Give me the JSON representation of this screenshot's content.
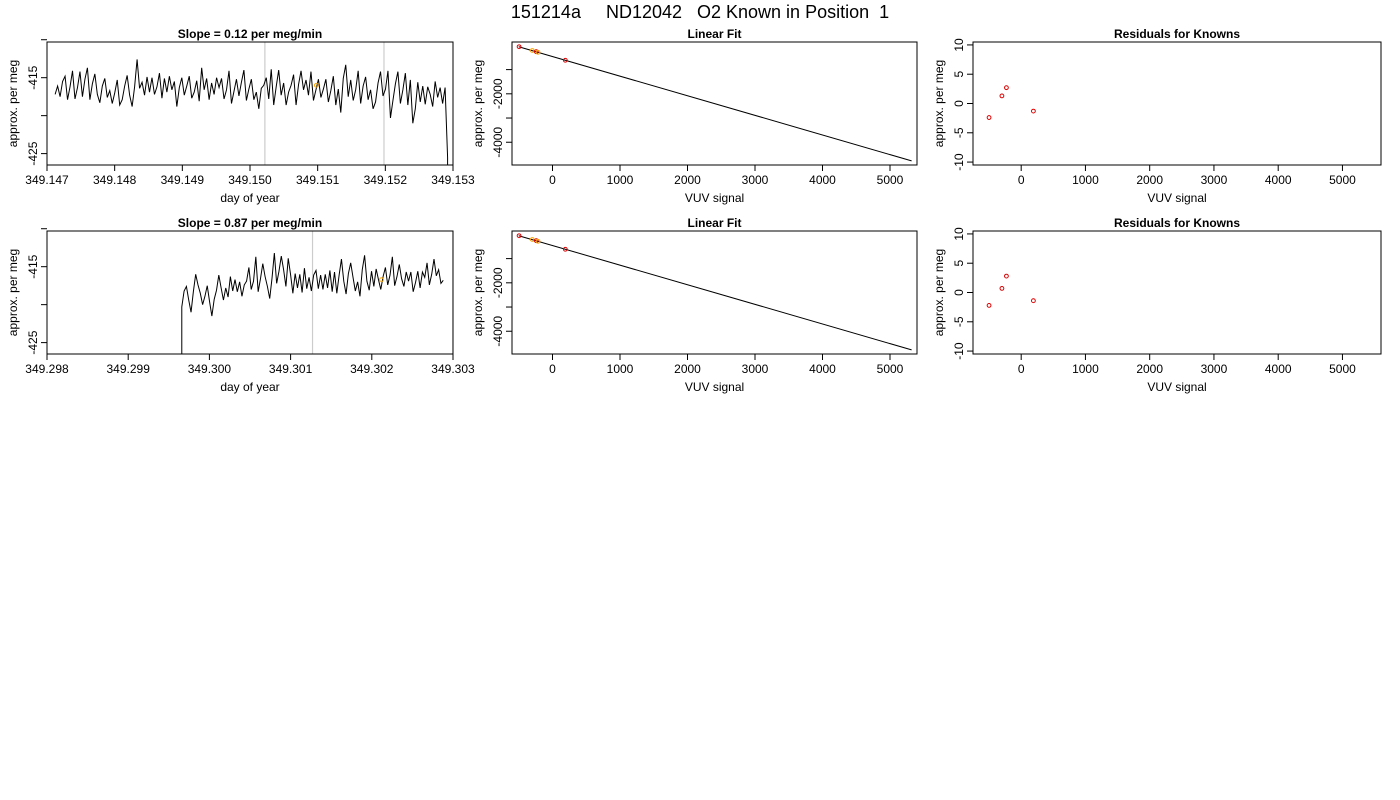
{
  "page": {
    "title": "151214a     ND12042   O2 Known in Position  1"
  },
  "colors": {
    "line": "#000000",
    "grid": "#cccccc",
    "point_red": "#dd0000",
    "point_orange": "#ffa500"
  },
  "chart_data": [
    {
      "type": "line",
      "row": 0,
      "col": 0,
      "title": "Slope =  0.12  per meg/min",
      "xlabel": "day of year",
      "ylabel": "approx. per meg",
      "xlim": [
        349.147,
        349.153
      ],
      "ylim": [
        -426.5,
        -410.3
      ],
      "xticks": [
        349.147,
        349.148,
        349.149,
        349.15,
        349.151,
        349.152,
        349.153
      ],
      "xtick_labels": [
        "349.147",
        "349.148",
        "349.149",
        "349.150",
        "349.151",
        "349.152",
        "349.153"
      ],
      "yticks": [
        -425,
        -420,
        -415,
        -410
      ],
      "ytick_labels": [
        "-425",
        "",
        "-415",
        ""
      ],
      "vlines": [
        349.15022,
        349.15198
      ],
      "series": [
        {
          "start": 349.14712,
          "end": 349.15292,
          "y_out": -430,
          "values": [
            -417.2,
            -416.1,
            -417.5,
            -415.5,
            -414.8,
            -417.9,
            -416.2,
            -414.1,
            -417.8,
            -416.3,
            -414.2,
            -417.5,
            -415.2,
            -413.7,
            -417.9,
            -415.8,
            -414.5,
            -417.2,
            -418.3,
            -416.1,
            -415.1,
            -417.6,
            -416.7,
            -418.4,
            -417.0,
            -415.3,
            -418.6,
            -417.9,
            -416.1,
            -414.7,
            -417.3,
            -418.8,
            -416.2,
            -412.6,
            -416.4,
            -415.6,
            -417.3,
            -414.9,
            -416.9,
            -415.0,
            -417.2,
            -416.2,
            -414.4,
            -417.7,
            -415.1,
            -416.9,
            -414.8,
            -416.6,
            -415.5,
            -418.8,
            -416.3,
            -415.0,
            -417.3,
            -416.1,
            -414.8,
            -417.7,
            -416.9,
            -415.4,
            -418.1,
            -413.7,
            -416.6,
            -415.1,
            -417.9,
            -415.7,
            -417.2,
            -415.0,
            -416.3,
            -415.1,
            -417.8,
            -416.6,
            -414.1,
            -418.4,
            -416.8,
            -415.2,
            -417.4,
            -415.6,
            -414.0,
            -418.0,
            -416.5,
            -415.2,
            -417.9,
            -416.9,
            -419.1,
            -416.4,
            -416.0,
            -415.0,
            -417.8,
            -413.9,
            -418.6,
            -416.2,
            -414.0,
            -417.3,
            -415.7,
            -418.6,
            -416.9,
            -416.0,
            -414.6,
            -418.6,
            -415.9,
            -414.1,
            -416.6,
            -415.3,
            -417.3,
            -414.2,
            -418.0,
            -416.6,
            -415.2,
            -417.6,
            -416.5,
            -415.2,
            -418.2,
            -416.7,
            -414.8,
            -418.6,
            -416.5,
            -419.6,
            -415.1,
            -413.3,
            -417.5,
            -415.3,
            -418.0,
            -416.6,
            -414.1,
            -418.4,
            -416.1,
            -414.9,
            -417.9,
            -416.6,
            -419.1,
            -418.2,
            -415.7,
            -414.2,
            -417.4,
            -416.5,
            -414.1,
            -420.3,
            -418.0,
            -415.8,
            -414.2,
            -418.4,
            -416.6,
            -414.4,
            -418.6,
            -415.3,
            -421.0,
            -419.1,
            -415.6,
            -418.2,
            -416.1,
            -418.5,
            -416.2,
            -417.2,
            -418.8,
            -415.5,
            -417.6,
            -416.3,
            -418.4,
            -416.3,
            -425.5
          ]
        }
      ],
      "points": [
        {
          "x": 349.15098,
          "y": -416.0,
          "color": "orange"
        }
      ]
    },
    {
      "type": "scatter",
      "row": 0,
      "col": 1,
      "title": "Linear Fit",
      "xlabel": "VUV signal",
      "ylabel": "approx. per meg",
      "xlim": [
        -600,
        5400
      ],
      "ylim": [
        -4940,
        140
      ],
      "xticks": [
        0,
        1000,
        2000,
        3000,
        4000,
        5000
      ],
      "xtick_labels": [
        "0",
        "1000",
        "2000",
        "3000",
        "4000",
        "5000"
      ],
      "yticks": [
        -4000,
        -3000,
        -2000,
        -1000
      ],
      "ytick_labels": [
        "-4000",
        "",
        "-2000",
        ""
      ],
      "fit_line": [
        [
          -500,
          -55
        ],
        [
          5320,
          -4770
        ]
      ],
      "points": [
        {
          "x": -495,
          "y": -55,
          "color": "red"
        },
        {
          "x": -300,
          "y": -210,
          "color": "orange"
        },
        {
          "x": -240,
          "y": -260,
          "color": "red"
        },
        {
          "x": -215,
          "y": -285,
          "color": "orange"
        },
        {
          "x": 190,
          "y": -615,
          "color": "red"
        }
      ]
    },
    {
      "type": "scatter",
      "row": 0,
      "col": 2,
      "title": "Residuals for Knowns",
      "xlabel": "VUV signal",
      "ylabel": "approx. per meg",
      "xlim": [
        -750,
        5600
      ],
      "ylim": [
        -10.5,
        10.5
      ],
      "xticks": [
        0,
        1000,
        2000,
        3000,
        4000,
        5000
      ],
      "xtick_labels": [
        "0",
        "1000",
        "2000",
        "3000",
        "4000",
        "5000"
      ],
      "yticks": [
        -10,
        -5,
        0,
        5,
        10
      ],
      "ytick_labels": [
        "-10",
        "-5",
        "0",
        "5",
        "10"
      ],
      "points": [
        {
          "x": -500,
          "y": -2.4,
          "color": "red"
        },
        {
          "x": -300,
          "y": 1.3,
          "color": "red"
        },
        {
          "x": -230,
          "y": 2.7,
          "color": "red"
        },
        {
          "x": 190,
          "y": -1.3,
          "color": "red"
        }
      ]
    },
    {
      "type": "line",
      "row": 1,
      "col": 0,
      "title": "Slope =  0.87  per meg/min",
      "xlabel": "day of year",
      "ylabel": "approx. per meg",
      "xlim": [
        349.298,
        349.303
      ],
      "ylim": [
        -426.5,
        -410.3
      ],
      "xticks": [
        349.298,
        349.299,
        349.3,
        349.301,
        349.302,
        349.303
      ],
      "xtick_labels": [
        "349.298",
        "349.299",
        "349.300",
        "349.301",
        "349.302",
        "349.303"
      ],
      "yticks": [
        -425,
        -420,
        -415,
        -410
      ],
      "ytick_labels": [
        "-425",
        "",
        "-415",
        ""
      ],
      "vlines": [
        349.30127,
        349.303
      ],
      "series": [
        {
          "start": 349.29966,
          "end": 349.30288,
          "y_in": -430,
          "values": [
            -420.3,
            -418.2,
            -417.6,
            -419.4,
            -421.0,
            -418.3,
            -416.0,
            -417.4,
            -418.5,
            -420.0,
            -418.9,
            -417.5,
            -419.6,
            -421.5,
            -419.3,
            -418.1,
            -416.1,
            -417.8,
            -419.4,
            -417.8,
            -419.0,
            -416.3,
            -418.2,
            -416.7,
            -418.3,
            -417.0,
            -418.9,
            -417.4,
            -416.9,
            -415.1,
            -418.0,
            -416.9,
            -413.7,
            -418.3,
            -416.6,
            -414.6,
            -416.3,
            -417.6,
            -419.2,
            -416.5,
            -413.2,
            -417.2,
            -415.6,
            -413.6,
            -415.4,
            -417.6,
            -413.9,
            -416.0,
            -418.5,
            -415.9,
            -417.8,
            -416.0,
            -418.4,
            -415.2,
            -417.9,
            -416.4,
            -418.2,
            -416.1,
            -415.5,
            -417.9,
            -416.1,
            -418.0,
            -416.0,
            -417.8,
            -415.5,
            -418.3,
            -415.7,
            -418.5,
            -416.1,
            -414.0,
            -416.9,
            -418.6,
            -415.9,
            -414.5,
            -416.4,
            -418.2,
            -417.0,
            -418.9,
            -415.4,
            -413.5,
            -416.9,
            -418.1,
            -415.6,
            -417.6,
            -415.3,
            -416.7,
            -418.0,
            -416.3,
            -415.1,
            -417.4,
            -416.1,
            -413.7,
            -417.5,
            -416.3,
            -414.7,
            -416.6,
            -417.6,
            -415.7,
            -416.9,
            -415.7,
            -418.3,
            -417.1,
            -415.6,
            -417.8,
            -415.7,
            -416.4,
            -414.5,
            -417.4,
            -416.0,
            -414.0,
            -416.2,
            -415.4,
            -417.2,
            -416.8
          ]
        }
      ],
      "points": [
        {
          "x": 349.30212,
          "y": -416.7,
          "color": "orange"
        }
      ]
    },
    {
      "type": "scatter",
      "row": 1,
      "col": 1,
      "title": "Linear Fit",
      "xlabel": "VUV signal",
      "ylabel": "approx. per meg",
      "xlim": [
        -600,
        5400
      ],
      "ylim": [
        -4940,
        140
      ],
      "xticks": [
        0,
        1000,
        2000,
        3000,
        4000,
        5000
      ],
      "xtick_labels": [
        "0",
        "1000",
        "2000",
        "3000",
        "4000",
        "5000"
      ],
      "yticks": [
        -4000,
        -3000,
        -2000,
        -1000
      ],
      "ytick_labels": [
        "-4000",
        "",
        "-2000",
        ""
      ],
      "fit_line": [
        [
          -500,
          -55
        ],
        [
          5320,
          -4770
        ]
      ],
      "points": [
        {
          "x": -495,
          "y": -55,
          "color": "red"
        },
        {
          "x": -300,
          "y": -210,
          "color": "orange"
        },
        {
          "x": -240,
          "y": -260,
          "color": "red"
        },
        {
          "x": -215,
          "y": -285,
          "color": "orange"
        },
        {
          "x": 190,
          "y": -615,
          "color": "red"
        }
      ]
    },
    {
      "type": "scatter",
      "row": 1,
      "col": 2,
      "title": "Residuals for Knowns",
      "xlabel": "VUV signal",
      "ylabel": "approx. per meg",
      "xlim": [
        -750,
        5600
      ],
      "ylim": [
        -10.5,
        10.5
      ],
      "xticks": [
        0,
        1000,
        2000,
        3000,
        4000,
        5000
      ],
      "xtick_labels": [
        "0",
        "1000",
        "2000",
        "3000",
        "4000",
        "5000"
      ],
      "yticks": [
        -10,
        -5,
        0,
        5,
        10
      ],
      "ytick_labels": [
        "-10",
        "-5",
        "0",
        "5",
        "10"
      ],
      "points": [
        {
          "x": -500,
          "y": -2.2,
          "color": "red"
        },
        {
          "x": -300,
          "y": 0.7,
          "color": "red"
        },
        {
          "x": -230,
          "y": 2.8,
          "color": "red"
        },
        {
          "x": 190,
          "y": -1.4,
          "color": "red"
        }
      ]
    }
  ]
}
